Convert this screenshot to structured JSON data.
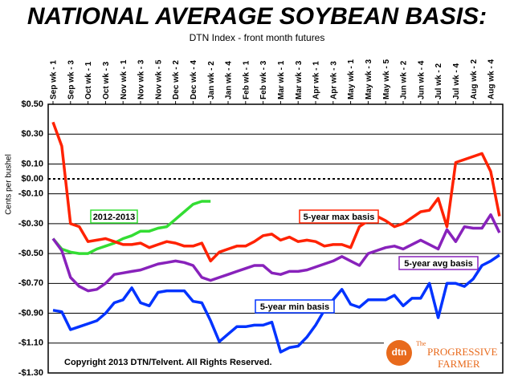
{
  "chart_data": {
    "type": "line",
    "title": "NATIONAL AVERAGE SOYBEAN BASIS:",
    "subtitle": "DTN Index - front month futures",
    "y_label": "Cents per bushel",
    "categories": [
      "Sep wk - 1",
      null,
      "Sep wk - 3",
      null,
      "Oct wk - 1",
      null,
      "Oct wk - 3",
      null,
      "Nov wk - 1",
      null,
      "Nov wk - 3",
      null,
      "Nov wk - 5",
      null,
      "Dec wk - 2",
      null,
      "Dec wk - 4",
      null,
      "Jan wk - 2",
      null,
      "Jan wk - 4",
      null,
      "Feb wk - 1",
      null,
      "Feb wk - 3",
      null,
      "Mar wk - 1",
      null,
      "Mar wk - 3",
      null,
      "Apr wk - 1",
      null,
      "Apr wk - 3",
      null,
      "May wk - 1",
      null,
      "May wk - 3",
      null,
      "May wk - 5",
      null,
      "Jun wk - 2",
      null,
      "Jun wk - 4",
      null,
      "Jul wk - 2",
      null,
      "Jul wk - 4",
      null,
      "Aug wk - 2",
      null,
      "Aug wk - 4",
      null
    ],
    "series": [
      {
        "name": "2012-2013",
        "color": "#33dd33",
        "values": [
          -0.4,
          -0.47,
          -0.49,
          -0.5,
          -0.5,
          -0.47,
          -0.45,
          -0.43,
          -0.4,
          -0.38,
          -0.35,
          -0.35,
          -0.33,
          -0.32,
          -0.27,
          -0.22,
          -0.17,
          -0.15,
          -0.15,
          null,
          null,
          null,
          null,
          null,
          null,
          null,
          null,
          null,
          null,
          null,
          null,
          null,
          null,
          null,
          null,
          null,
          null,
          null,
          null,
          null,
          null,
          null,
          null,
          null,
          null,
          null,
          null,
          null,
          null,
          null,
          null,
          null
        ]
      },
      {
        "name": "5-year max basis",
        "color": "#ff2200",
        "values": [
          0.38,
          0.22,
          -0.3,
          -0.32,
          -0.42,
          -0.41,
          -0.4,
          -0.42,
          -0.44,
          -0.44,
          -0.43,
          -0.46,
          -0.44,
          -0.42,
          -0.43,
          -0.45,
          -0.45,
          -0.43,
          -0.55,
          -0.49,
          -0.47,
          -0.45,
          -0.45,
          -0.42,
          -0.38,
          -0.37,
          -0.41,
          -0.39,
          -0.42,
          -0.41,
          -0.42,
          -0.45,
          -0.44,
          -0.44,
          -0.46,
          -0.32,
          -0.28,
          -0.25,
          -0.28,
          -0.32,
          -0.3,
          -0.26,
          -0.22,
          -0.21,
          -0.13,
          -0.32,
          0.11,
          0.13,
          0.15,
          0.17,
          0.05,
          -0.25
        ]
      },
      {
        "name": "5-year avg basis",
        "color": "#8822bb",
        "values": [
          -0.4,
          -0.48,
          -0.66,
          -0.72,
          -0.75,
          -0.74,
          -0.7,
          -0.64,
          -0.63,
          -0.62,
          -0.61,
          -0.59,
          -0.57,
          -0.56,
          -0.55,
          -0.56,
          -0.58,
          -0.66,
          -0.68,
          -0.66,
          -0.64,
          -0.62,
          -0.6,
          -0.58,
          -0.58,
          -0.63,
          -0.64,
          -0.62,
          -0.62,
          -0.61,
          -0.59,
          -0.57,
          -0.55,
          -0.52,
          -0.55,
          -0.58,
          -0.5,
          -0.48,
          -0.46,
          -0.45,
          -0.47,
          -0.44,
          -0.41,
          -0.44,
          -0.47,
          -0.34,
          -0.42,
          -0.32,
          -0.33,
          -0.33,
          -0.24,
          -0.36
        ]
      },
      {
        "name": "5-year min basis",
        "color": "#0033ff",
        "values": [
          -0.88,
          -0.89,
          -1.01,
          -0.99,
          -0.97,
          -0.95,
          -0.9,
          -0.83,
          -0.81,
          -0.73,
          -0.83,
          -0.85,
          -0.76,
          -0.75,
          -0.75,
          -0.75,
          -0.82,
          -0.83,
          -0.95,
          -1.09,
          -1.04,
          -0.99,
          -0.99,
          -0.98,
          -0.98,
          -0.96,
          -1.16,
          -1.13,
          -1.12,
          -1.06,
          -0.98,
          -0.88,
          -0.81,
          -0.74,
          -0.84,
          -0.86,
          -0.81,
          -0.81,
          -0.81,
          -0.78,
          -0.85,
          -0.8,
          -0.8,
          -0.7,
          -0.93,
          -0.7,
          -0.7,
          -0.72,
          -0.67,
          -0.58,
          -0.55,
          -0.51
        ]
      }
    ],
    "ylim": [
      -1.3,
      0.5
    ],
    "yticks": [
      {
        "value": 0.5,
        "label": "$0.50"
      },
      {
        "value": 0.3,
        "label": "$0.30"
      },
      {
        "value": 0.1,
        "label": "$0.10"
      },
      {
        "value": 0,
        "label": "$0.00"
      },
      {
        "value": -0.1,
        "label": "-$0.10"
      },
      {
        "value": -0.3,
        "label": "-$0.30"
      },
      {
        "value": -0.5,
        "label": "-$0.50"
      },
      {
        "value": -0.7,
        "label": "-$0.70"
      },
      {
        "value": -0.9,
        "label": "-$0.90"
      },
      {
        "value": -1.1,
        "label": "-$1.10"
      },
      {
        "value": -1.3,
        "label": "-$1.30"
      }
    ],
    "grid": true,
    "annotations": [
      "Copyright 2013 DTN/Telvent. All Rights Reserved."
    ],
    "logo": {
      "badge": "dtn",
      "pre": "The",
      "line1": "PROGRESSIVE",
      "line2": "FARMER"
    }
  }
}
